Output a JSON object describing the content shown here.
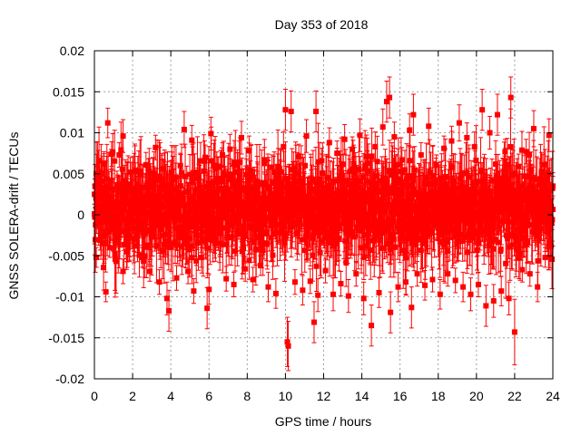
{
  "chart_data": {
    "type": "scatter",
    "title": "Day 353 of 2018",
    "xlabel": "GPS time / hours",
    "ylabel": "GNSS SOLERA-drift / TECUs",
    "xlim": [
      0,
      24
    ],
    "ylim": [
      -0.02,
      0.02
    ],
    "xticks": [
      0,
      2,
      4,
      6,
      8,
      10,
      12,
      14,
      16,
      18,
      20,
      22,
      24
    ],
    "xtick_labels": [
      "0",
      "2",
      "4",
      "6",
      "8",
      "10",
      "12",
      "14",
      "16",
      "18",
      "20",
      "22",
      "24"
    ],
    "yticks": [
      -0.02,
      -0.015,
      -0.01,
      -0.005,
      0,
      0.005,
      0.01,
      0.015,
      0.02
    ],
    "ytick_labels": [
      "-0.02",
      "-0.015",
      "-0.01",
      "-0.005",
      "0",
      "0.005",
      "0.01",
      "0.015",
      "0.02"
    ],
    "grid": true,
    "series_color": "#ff0000",
    "marker": "square",
    "error_bars": true,
    "points": [
      [
        0.0,
        0.0025,
        0.0012
      ],
      [
        0.1,
        -0.0052,
        0.0012
      ],
      [
        0.2,
        0.0041,
        0.0012
      ],
      [
        0.3,
        -0.0031,
        0.0012
      ],
      [
        0.5,
        0.0062,
        0.0015
      ],
      [
        0.6,
        -0.0094,
        0.0012
      ],
      [
        0.7,
        0.0112,
        0.0018
      ],
      [
        0.8,
        -0.004,
        0.0012
      ],
      [
        0.9,
        0.0074,
        0.0015
      ],
      [
        1.1,
        -0.0028,
        0.0012
      ],
      [
        1.2,
        0.0034,
        0.0012
      ],
      [
        1.3,
        0.0073,
        0.0015
      ],
      [
        1.5,
        0.0096,
        0.002
      ],
      [
        1.5,
        -0.0069,
        0.0015
      ],
      [
        1.7,
        -0.0045,
        0.0012
      ],
      [
        1.9,
        0.0052,
        0.0012
      ],
      [
        2.1,
        -0.0038,
        0.0012
      ],
      [
        2.3,
        0.0028,
        0.0012
      ],
      [
        2.5,
        -0.0052,
        0.0012
      ],
      [
        2.7,
        0.0061,
        0.0015
      ],
      [
        2.9,
        -0.0069,
        0.0012
      ],
      [
        3.0,
        0.0042,
        0.0012
      ],
      [
        3.2,
        0.0082,
        0.0015
      ],
      [
        3.4,
        -0.0082,
        0.0015
      ],
      [
        3.6,
        0.0056,
        0.0012
      ],
      [
        3.8,
        -0.0102,
        0.002
      ],
      [
        3.9,
        -0.0117,
        0.0025
      ],
      [
        4.1,
        0.003,
        0.0012
      ],
      [
        4.3,
        -0.0077,
        0.0015
      ],
      [
        4.5,
        0.006,
        0.0015
      ],
      [
        4.7,
        0.0104,
        0.0022
      ],
      [
        4.9,
        -0.0069,
        0.0015
      ],
      [
        5.1,
        0.0091,
        0.0018
      ],
      [
        5.2,
        -0.0093,
        0.0015
      ],
      [
        5.4,
        0.0045,
        0.0012
      ],
      [
        5.6,
        -0.0052,
        0.0012
      ],
      [
        5.8,
        0.007,
        0.0015
      ],
      [
        5.9,
        -0.0114,
        0.0025
      ],
      [
        6.0,
        -0.0091,
        0.0018
      ],
      [
        6.1,
        0.0099,
        0.002
      ],
      [
        6.3,
        -0.0035,
        0.0012
      ],
      [
        6.5,
        0.0058,
        0.0012
      ],
      [
        6.7,
        0.0073,
        0.0015
      ],
      [
        6.9,
        -0.0078,
        0.0015
      ],
      [
        7.1,
        0.008,
        0.0018
      ],
      [
        7.3,
        -0.0085,
        0.0015
      ],
      [
        7.5,
        0.0052,
        0.0012
      ],
      [
        7.7,
        0.0094,
        0.002
      ],
      [
        7.9,
        -0.0066,
        0.0015
      ],
      [
        8.1,
        0.0078,
        0.0018
      ],
      [
        8.3,
        -0.0079,
        0.0015
      ],
      [
        8.5,
        0.0041,
        0.0012
      ],
      [
        8.7,
        -0.0062,
        0.0012
      ],
      [
        8.9,
        0.0067,
        0.0015
      ],
      [
        9.1,
        -0.0088,
        0.0018
      ],
      [
        9.3,
        0.0058,
        0.0015
      ],
      [
        9.5,
        -0.0096,
        0.0018
      ],
      [
        9.7,
        0.0055,
        0.0012
      ],
      [
        9.9,
        0.0083,
        0.0018
      ],
      [
        10.0,
        0.0128,
        0.0025
      ],
      [
        10.1,
        -0.0155,
        0.003
      ],
      [
        10.15,
        -0.016,
        0.003
      ],
      [
        10.3,
        0.0126,
        0.0025
      ],
      [
        10.5,
        -0.0082,
        0.0015
      ],
      [
        10.7,
        0.0071,
        0.0015
      ],
      [
        10.9,
        -0.0092,
        0.0018
      ],
      [
        11.1,
        0.0096,
        0.002
      ],
      [
        11.3,
        -0.0081,
        0.0015
      ],
      [
        11.5,
        -0.0131,
        0.0025
      ],
      [
        11.6,
        0.0126,
        0.0025
      ],
      [
        11.7,
        -0.0098,
        0.002
      ],
      [
        11.9,
        0.0066,
        0.0015
      ],
      [
        12.1,
        -0.0068,
        0.0015
      ],
      [
        12.3,
        0.0088,
        0.0018
      ],
      [
        12.5,
        -0.0097,
        0.002
      ],
      [
        12.7,
        0.0075,
        0.0015
      ],
      [
        12.9,
        -0.0084,
        0.0015
      ],
      [
        13.1,
        0.0092,
        0.0018
      ],
      [
        13.3,
        -0.0099,
        0.002
      ],
      [
        13.5,
        0.008,
        0.0015
      ],
      [
        13.7,
        -0.0072,
        0.0015
      ],
      [
        13.9,
        0.0097,
        0.002
      ],
      [
        14.1,
        -0.0102,
        0.002
      ],
      [
        14.3,
        0.0063,
        0.0015
      ],
      [
        14.5,
        -0.0135,
        0.0025
      ],
      [
        14.7,
        0.0083,
        0.0018
      ],
      [
        14.9,
        -0.0095,
        0.0018
      ],
      [
        15.1,
        0.0107,
        0.0022
      ],
      [
        15.3,
        0.0138,
        0.0025
      ],
      [
        15.45,
        0.0143,
        0.0025
      ],
      [
        15.5,
        -0.0119,
        0.0025
      ],
      [
        15.7,
        0.0095,
        0.0018
      ],
      [
        15.9,
        -0.0088,
        0.0018
      ],
      [
        16.1,
        0.0067,
        0.0015
      ],
      [
        16.3,
        -0.0082,
        0.0015
      ],
      [
        16.5,
        0.0103,
        0.002
      ],
      [
        16.6,
        -0.0113,
        0.0025
      ],
      [
        16.7,
        0.0122,
        0.0025
      ],
      [
        16.9,
        -0.0072,
        0.0015
      ],
      [
        17.1,
        0.0073,
        0.0015
      ],
      [
        17.3,
        -0.0086,
        0.0018
      ],
      [
        17.5,
        0.0108,
        0.0022
      ],
      [
        17.7,
        -0.0079,
        0.0015
      ],
      [
        17.9,
        0.0061,
        0.0012
      ],
      [
        18.1,
        -0.0097,
        0.0018
      ],
      [
        18.3,
        0.0081,
        0.0015
      ],
      [
        18.5,
        -0.0072,
        0.0015
      ],
      [
        18.7,
        0.009,
        0.0018
      ],
      [
        18.9,
        -0.008,
        0.0015
      ],
      [
        19.1,
        0.0112,
        0.0022
      ],
      [
        19.3,
        -0.0088,
        0.0018
      ],
      [
        19.5,
        0.0094,
        0.0018
      ],
      [
        19.7,
        -0.0097,
        0.002
      ],
      [
        19.9,
        0.0083,
        0.0018
      ],
      [
        20.1,
        -0.0085,
        0.0015
      ],
      [
        20.3,
        0.0128,
        0.0025
      ],
      [
        20.5,
        -0.0111,
        0.0025
      ],
      [
        20.7,
        0.01,
        0.002
      ],
      [
        20.9,
        -0.0105,
        0.002
      ],
      [
        21.1,
        0.0122,
        0.0025
      ],
      [
        21.3,
        -0.0093,
        0.0018
      ],
      [
        21.5,
        0.0077,
        0.0015
      ],
      [
        21.7,
        -0.0102,
        0.002
      ],
      [
        21.8,
        0.0143,
        0.0025
      ],
      [
        22.0,
        -0.0143,
        0.004
      ],
      [
        22.2,
        0.0059,
        0.0015
      ],
      [
        22.4,
        -0.0067,
        0.0015
      ],
      [
        22.6,
        0.0077,
        0.0015
      ],
      [
        22.8,
        -0.0072,
        0.0015
      ],
      [
        23.0,
        0.0105,
        0.0022
      ],
      [
        23.2,
        -0.0088,
        0.0018
      ],
      [
        23.4,
        0.0051,
        0.0012
      ],
      [
        23.6,
        -0.0052,
        0.0012
      ],
      [
        23.8,
        0.0097,
        0.002
      ],
      [
        23.9,
        -0.0038,
        0.0012
      ],
      [
        24.0,
        0.0035,
        0.0012
      ]
    ]
  }
}
